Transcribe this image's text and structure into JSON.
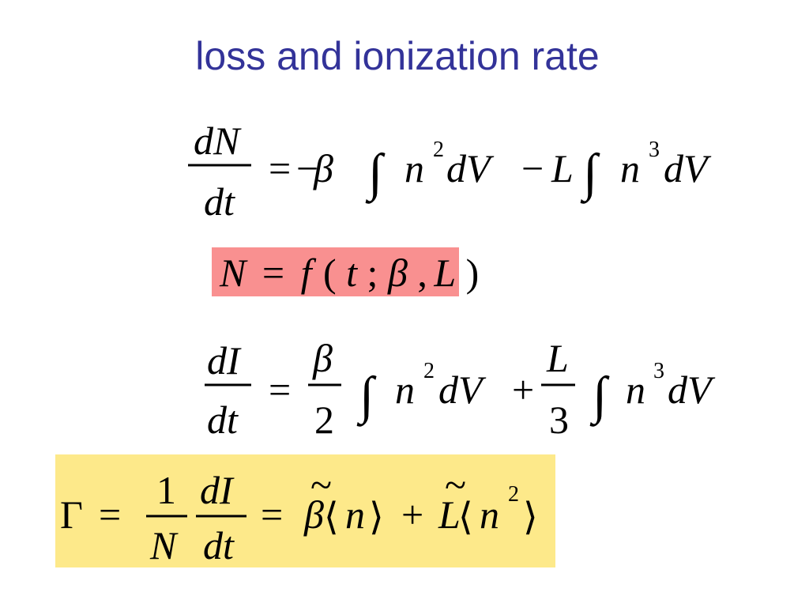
{
  "title": "loss and ionization rate",
  "eq1": [
    "dN",
    "dt",
    "=",
    "−",
    "β",
    "∫",
    "n",
    "2",
    "dV",
    "−",
    "L",
    "∫",
    "n",
    "3",
    "dV"
  ],
  "eq2": [
    "N",
    "=",
    "f",
    "(",
    "t",
    ";",
    "β",
    ",",
    "L",
    ")"
  ],
  "eq3": [
    "dI",
    "dt",
    "=",
    "β",
    "2",
    "∫",
    "n",
    "2",
    "dV",
    "+",
    "L",
    "3",
    "∫",
    "n",
    "3",
    "dV"
  ],
  "eq4": [
    "Γ",
    "=",
    "1",
    "N",
    "dI",
    "dt",
    "=",
    "β",
    "~",
    "⟨",
    "n",
    "⟩",
    "+",
    "L",
    "~",
    "⟨",
    "n",
    "2",
    "⟩"
  ]
}
